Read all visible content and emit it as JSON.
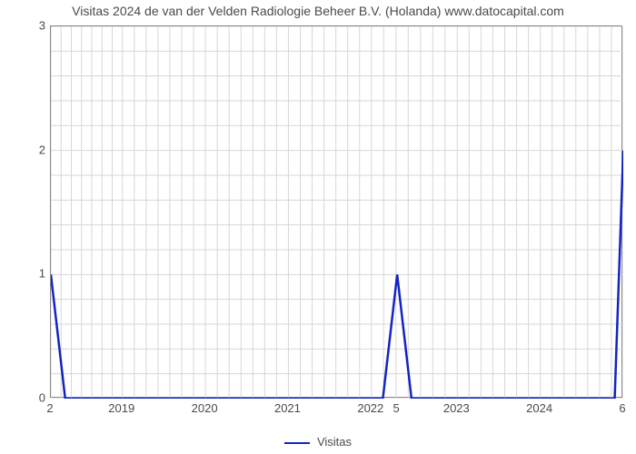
{
  "chart": {
    "type": "line",
    "title": "Visitas 2024 de van der Velden Radiologie Beheer B.V. (Holanda) www.datocapital.com",
    "title_fontsize": 14,
    "title_color": "#4a4a4a",
    "background_color": "#ffffff",
    "plot_border_color": "#888888",
    "grid_color": "#d7d7d7",
    "line_color": "#1225c1",
    "line_width": 2.5,
    "y_axis": {
      "min": 0,
      "max": 3,
      "ticks": [
        0,
        1,
        2,
        3
      ],
      "minor_steps": 5
    },
    "x_axis": {
      "year_labels": [
        "2019",
        "2020",
        "2021",
        "2022",
        "2023",
        "2024"
      ],
      "year_positions": [
        0.125,
        0.27,
        0.415,
        0.56,
        0.71,
        0.855
      ],
      "extra_ticks": [
        {
          "label": "2",
          "pos": 0.0
        },
        {
          "label": "5",
          "pos": 0.605
        },
        {
          "label": "6",
          "pos": 1.0
        }
      ],
      "minor_count": 7
    },
    "series": {
      "name": "Visitas",
      "points": [
        [
          0.0,
          1.0
        ],
        [
          0.025,
          0.0
        ],
        [
          0.58,
          0.0
        ],
        [
          0.605,
          1.0
        ],
        [
          0.63,
          0.0
        ],
        [
          0.985,
          0.0
        ],
        [
          1.0,
          2.0
        ]
      ]
    },
    "legend": {
      "label": "Visitas"
    }
  }
}
